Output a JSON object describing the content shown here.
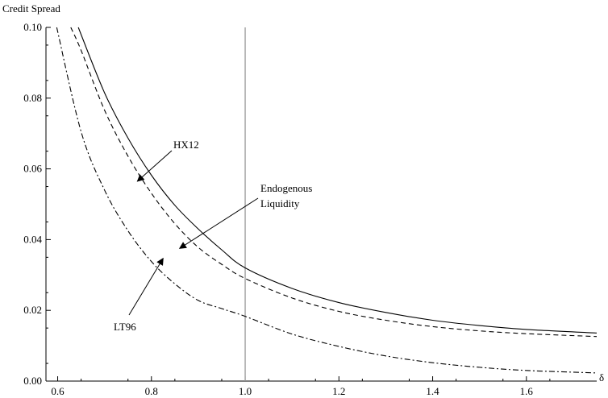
{
  "chart_data": {
    "type": "line",
    "title": "",
    "ylabel": "Credit Spread",
    "xlabel": "δ",
    "xlim": [
      0.575,
      1.75
    ],
    "ylim": [
      0,
      0.1
    ],
    "grid": false,
    "legend": "none",
    "x_ticks": [
      "0.6",
      "0.8",
      "1.0",
      "1.2",
      "1.4",
      "1.6"
    ],
    "x_tick_values": [
      0.6,
      0.8,
      1.0,
      1.2,
      1.4,
      1.6
    ],
    "y_ticks": [
      "0.00",
      "0.02",
      "0.04",
      "0.06",
      "0.08",
      "0.10"
    ],
    "y_tick_values": [
      0,
      0.02,
      0.04,
      0.06,
      0.08,
      0.1
    ],
    "vertical_line_x": 1.0,
    "series": [
      {
        "style": "solid",
        "x": [
          0.644,
          0.7,
          0.75,
          0.8,
          0.85,
          0.9,
          0.95,
          1.0,
          1.1,
          1.2,
          1.3,
          1.4,
          1.5,
          1.6,
          1.75
        ],
        "values": [
          0.1,
          0.0815,
          0.0687,
          0.0582,
          0.0497,
          0.043,
          0.0371,
          0.032,
          0.0262,
          0.0222,
          0.0194,
          0.0172,
          0.0157,
          0.0146,
          0.0136
        ]
      },
      {
        "style": "dashed",
        "x": [
          0.628,
          0.65,
          0.7,
          0.75,
          0.8,
          0.85,
          0.9,
          0.95,
          1.0,
          1.1,
          1.2,
          1.3,
          1.4,
          1.5,
          1.6,
          1.75
        ],
        "values": [
          0.1,
          0.0935,
          0.0766,
          0.0636,
          0.0531,
          0.0445,
          0.0378,
          0.033,
          0.029,
          0.0235,
          0.0197,
          0.0172,
          0.0154,
          0.0142,
          0.0134,
          0.0126
        ]
      },
      {
        "style": "dashdot",
        "x": [
          0.598,
          0.65,
          0.7,
          0.75,
          0.8,
          0.85,
          0.9,
          0.95,
          1.0,
          1.1,
          1.2,
          1.3,
          1.4,
          1.5,
          1.6,
          1.75
        ],
        "values": [
          0.1,
          0.0705,
          0.054,
          0.0425,
          0.0338,
          0.0275,
          0.0228,
          0.0205,
          0.0183,
          0.0133,
          0.0098,
          0.0071,
          0.0052,
          0.0039,
          0.003,
          0.0023
        ]
      }
    ],
    "annotations": [
      {
        "text": "HX12",
        "points_to": [
          0.77,
          0.0565
        ]
      },
      {
        "text": "Endogenous",
        "points_to": [
          0.86,
          0.0375
        ]
      },
      {
        "text": "Liquidity",
        "points_to": null
      },
      {
        "text": "LT96",
        "points_to": [
          0.825,
          0.0347
        ]
      }
    ]
  }
}
